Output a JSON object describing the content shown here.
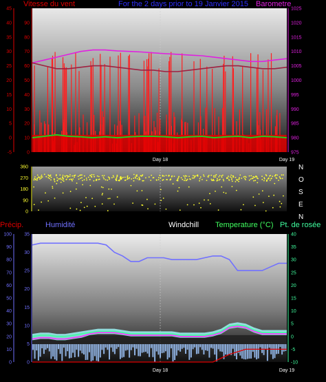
{
  "colors": {
    "wind": "#e00000",
    "gust": "#ff2020",
    "baro": "#e020e0",
    "baro_alt": "#a02040",
    "wind_green": "#20d020",
    "direction": "#ffff30",
    "humidity": "#7070ff",
    "temp": "#ff30ff",
    "dew": "#40ffa0",
    "windchill_band": "#a0ffff",
    "precip": "#e00000",
    "bars": "#a0c8ff",
    "day_label": "#ffffff"
  },
  "header": {
    "wind_label": "Vitesse du vent",
    "title": "For the 2 days prior to   19 Janvier 2015",
    "baro_label": "Barometre"
  },
  "mid": {
    "compass": [
      "N",
      "O",
      "S",
      "E",
      "N"
    ]
  },
  "bottom_header": {
    "precip_label": "Précip.",
    "humidity_label": "Humidité",
    "windchill_label": "Windchill",
    "temp_label": "Temperature (°C)",
    "dew_label": "Pt. de rosée"
  },
  "chart_data": [
    {
      "type": "line",
      "title": "For the 2 days prior to   19 Janvier 2015",
      "x_ticks": [
        "Day 18",
        "Day 19"
      ],
      "left_axis": {
        "label": "Vitesse du vent",
        "range": [
          -5,
          45
        ],
        "ticks": [
          -5,
          0,
          5,
          10,
          15,
          20,
          25,
          30,
          35,
          40,
          45
        ]
      },
      "inner_left_axis": {
        "range": [
          0,
          100
        ],
        "ticks": [
          0,
          10,
          20,
          30,
          40,
          50,
          60,
          70,
          80,
          90
        ]
      },
      "right_axis": {
        "label": "Barometre",
        "range": [
          975,
          1025
        ],
        "ticks": [
          975,
          980,
          985,
          990,
          995,
          1000,
          1005,
          1010,
          1015,
          1020,
          1025
        ]
      },
      "series": [
        {
          "name": "Barometre",
          "axis": "right",
          "color": "#e020e0",
          "values": [
            1006,
            1007,
            1008,
            1009,
            1010,
            1010.5,
            1010.5,
            1010.2,
            1010,
            1009.8,
            1009.5,
            1009.2,
            1009,
            1008.7,
            1008.5,
            1008,
            1007.5,
            1007,
            1006.5,
            1006.5,
            1007,
            1007.5
          ]
        },
        {
          "name": "",
          "axis": "right",
          "color": "#a02040",
          "values": [
            1006,
            1005,
            1004,
            1004,
            1004.5,
            1005,
            1005,
            1004.5,
            1004,
            1003.5,
            1003.5,
            1003,
            1003,
            1003.5,
            1004,
            1004.5,
            1005,
            1005,
            1004.5,
            1004,
            1004,
            1004.5
          ]
        },
        {
          "name": "Vitesse du vent",
          "axis": "left",
          "color": "#20d020",
          "values": [
            0,
            0.5,
            1,
            0.5,
            0.3,
            0,
            0.3,
            0,
            0.3,
            0.5,
            0.5,
            0.3,
            0,
            0.3,
            0.5,
            0,
            0.3,
            0.5,
            0,
            0.5,
            0.3,
            0
          ]
        }
      ]
    },
    {
      "type": "scatter",
      "y_axis": {
        "range": [
          0,
          360
        ],
        "ticks": [
          0,
          90,
          180,
          270,
          360
        ]
      },
      "series": [
        {
          "name": "",
          "color": "#ffff30",
          "typical": 270
        }
      ]
    },
    {
      "type": "line",
      "x_ticks": [
        "Day 18",
        "Day 19"
      ],
      "precip_axis": {
        "label": "Précip.",
        "range": [
          0,
          100
        ],
        "ticks": [
          0,
          10,
          20,
          30,
          40,
          50,
          60,
          70,
          80,
          90,
          100
        ]
      },
      "inner_axis": {
        "range": [
          0,
          35
        ],
        "ticks": [
          0,
          5,
          10,
          15,
          20,
          25,
          30,
          35
        ]
      },
      "right_axis": {
        "label": "Temperature (°C)",
        "range": [
          -10,
          40
        ],
        "ticks": [
          -10,
          -5,
          0,
          5,
          10,
          15,
          20,
          25,
          30,
          35,
          40
        ]
      },
      "series": [
        {
          "name": "Humidité",
          "axis": "inner",
          "color": "#7070ff",
          "values": [
            32,
            32.5,
            32.5,
            32.5,
            32.5,
            32.5,
            32.5,
            32.5,
            32.5,
            32,
            30,
            29,
            27.5,
            27.5,
            28.5,
            28.5,
            28.5,
            28,
            28,
            28,
            28,
            28.5,
            29,
            29,
            28,
            25,
            25,
            25,
            25,
            26,
            27,
            27
          ]
        },
        {
          "name": "Temperature (°C)",
          "axis": "right",
          "color": "#ff30ff",
          "values": [
            -1,
            -0.5,
            -0.5,
            -1,
            -1,
            -0.5,
            0,
            1,
            1.5,
            1.5,
            1.5,
            1,
            0.5,
            0.5,
            0.5,
            0.5,
            0.5,
            0.5,
            0,
            0,
            0,
            0,
            0.5,
            1.5,
            3.5,
            4,
            3.5,
            2,
            1,
            1,
            1,
            1
          ]
        },
        {
          "name": "Pt. de rosée",
          "axis": "right",
          "color": "#40ffa0",
          "values": [
            0,
            0.5,
            0.5,
            0,
            0,
            0.5,
            1,
            1.5,
            2,
            2,
            2,
            1.5,
            1,
            1,
            1,
            1,
            1,
            1,
            0.5,
            0.5,
            0.5,
            0.5,
            1,
            2,
            4,
            4.5,
            4,
            2.5,
            1.5,
            1.5,
            1.5,
            1.5
          ]
        },
        {
          "name": "Précip.",
          "axis": "precip",
          "color": "#e00000",
          "values": [
            0,
            0,
            0,
            0,
            0,
            0,
            0,
            0,
            0,
            0,
            0,
            0,
            0,
            0,
            0,
            0,
            0,
            0,
            0,
            0,
            0,
            0,
            0,
            3,
            6,
            8,
            10,
            10,
            10,
            10,
            10,
            10
          ]
        }
      ]
    }
  ]
}
